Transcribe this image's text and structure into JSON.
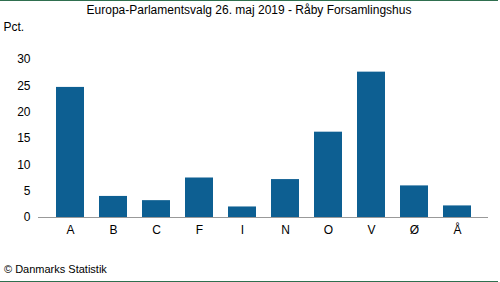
{
  "chart_data": {
    "type": "bar",
    "title": "Europa-Parlamentsvalg 26. maj 2019 - Råby Forsamlingshus",
    "caption": "© Danmarks Statistik",
    "ylabel": "Pct.",
    "categories": [
      "A",
      "B",
      "C",
      "F",
      "I",
      "N",
      "O",
      "V",
      "Ø",
      "Å"
    ],
    "values": [
      24.7,
      4.0,
      3.2,
      7.5,
      2.0,
      7.2,
      16.2,
      27.6,
      6.0,
      2.2
    ],
    "color": "#0d5f92",
    "ylim": [
      0,
      30
    ],
    "yticks": [
      0,
      5,
      10,
      15,
      20,
      25,
      30
    ],
    "grid": false
  }
}
